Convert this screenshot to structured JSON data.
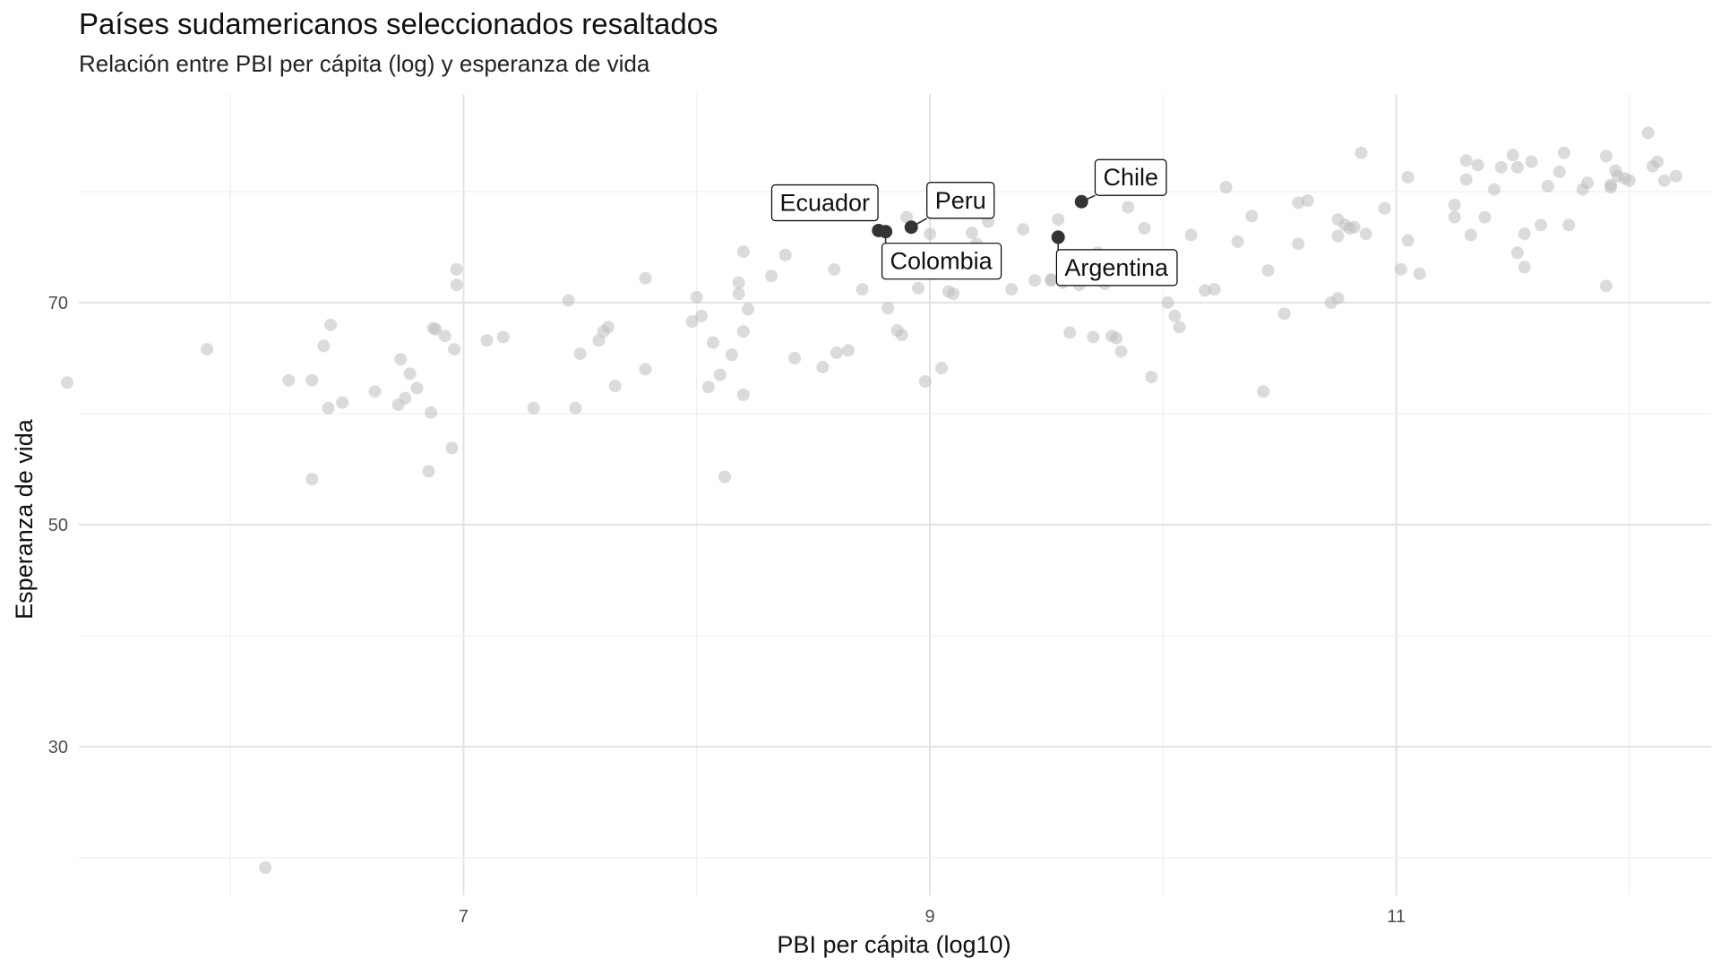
{
  "chart_data": {
    "type": "scatter",
    "title": "Países sudamericanos seleccionados resaltados",
    "subtitle": "Relación entre PBI per cápita (log) y esperanza de vida",
    "xlabel": "PBI per cápita (log10)",
    "ylabel": "Esperanza de vida",
    "xlim": [
      5.35,
      12.35
    ],
    "ylim": [
      16.6,
      88.8
    ],
    "x_ticks": [
      7,
      9,
      11
    ],
    "y_ticks": [
      30,
      50,
      70
    ],
    "grid": true,
    "background_points": [
      [
        5.3,
        62.8
      ],
      [
        5.9,
        65.8
      ],
      [
        6.15,
        19.1
      ],
      [
        6.25,
        63
      ],
      [
        6.35,
        63
      ],
      [
        6.35,
        54.1
      ],
      [
        6.4,
        66.1
      ],
      [
        6.42,
        60.5
      ],
      [
        6.43,
        68
      ],
      [
        6.48,
        61
      ],
      [
        6.62,
        62
      ],
      [
        6.72,
        60.8
      ],
      [
        6.73,
        64.9
      ],
      [
        6.75,
        61.4
      ],
      [
        6.77,
        63.6
      ],
      [
        6.8,
        62.3
      ],
      [
        6.87,
        67.7
      ],
      [
        6.88,
        67.6
      ],
      [
        6.86,
        60.1
      ],
      [
        6.85,
        54.8
      ],
      [
        6.92,
        67
      ],
      [
        6.95,
        56.9
      ],
      [
        6.96,
        65.8
      ],
      [
        6.97,
        73
      ],
      [
        6.97,
        71.6
      ],
      [
        7.1,
        66.6
      ],
      [
        7.17,
        66.9
      ],
      [
        7.3,
        60.5
      ],
      [
        7.45,
        70.2
      ],
      [
        7.48,
        60.5
      ],
      [
        7.5,
        65.4
      ],
      [
        7.58,
        66.6
      ],
      [
        7.6,
        67.4
      ],
      [
        7.62,
        67.8
      ],
      [
        7.65,
        62.5
      ],
      [
        7.78,
        64
      ],
      [
        7.78,
        72.2
      ],
      [
        7.98,
        68.3
      ],
      [
        8.0,
        70.5
      ],
      [
        8.02,
        68.8
      ],
      [
        8.05,
        62.4
      ],
      [
        8.07,
        66.4
      ],
      [
        8.1,
        63.5
      ],
      [
        8.12,
        54.3
      ],
      [
        8.15,
        65.3
      ],
      [
        8.18,
        70.8
      ],
      [
        8.18,
        71.8
      ],
      [
        8.2,
        74.6
      ],
      [
        8.2,
        67.4
      ],
      [
        8.22,
        69.4
      ],
      [
        8.2,
        61.7
      ],
      [
        8.32,
        72.4
      ],
      [
        8.38,
        74.3
      ],
      [
        8.42,
        65
      ],
      [
        8.54,
        64.2
      ],
      [
        8.59,
        73
      ],
      [
        8.6,
        65.5
      ],
      [
        8.65,
        65.7
      ],
      [
        8.71,
        71.2
      ],
      [
        8.82,
        69.5
      ],
      [
        8.86,
        67.5
      ],
      [
        8.88,
        67.1
      ],
      [
        8.9,
        77.7
      ],
      [
        8.95,
        71.3
      ],
      [
        8.92,
        72.9
      ],
      [
        8.98,
        62.9
      ],
      [
        9.0,
        76.2
      ],
      [
        9.02,
        74.1
      ],
      [
        9.05,
        64.1
      ],
      [
        9.08,
        71
      ],
      [
        9.1,
        70.8
      ],
      [
        9.18,
        76.3
      ],
      [
        9.2,
        75.3
      ],
      [
        9.25,
        77.3
      ],
      [
        9.35,
        71.2
      ],
      [
        9.4,
        76.6
      ],
      [
        9.45,
        72
      ],
      [
        9.52,
        72.1
      ],
      [
        9.52,
        72
      ],
      [
        9.55,
        77.5
      ],
      [
        9.57,
        71.8
      ],
      [
        9.6,
        67.3
      ],
      [
        9.64,
        71.6
      ],
      [
        9.7,
        66.9
      ],
      [
        9.72,
        74.5
      ],
      [
        9.75,
        71.7
      ],
      [
        9.78,
        73.4
      ],
      [
        9.8,
        72.3
      ],
      [
        9.78,
        67
      ],
      [
        9.8,
        66.8
      ],
      [
        9.82,
        65.6
      ],
      [
        9.85,
        78.6
      ],
      [
        9.88,
        72.3
      ],
      [
        9.92,
        76.7
      ],
      [
        9.95,
        63.3
      ],
      [
        10.02,
        70
      ],
      [
        10.05,
        68.8
      ],
      [
        10.07,
        67.8
      ],
      [
        10.12,
        76.1
      ],
      [
        10.18,
        71.1
      ],
      [
        10.22,
        71.2
      ],
      [
        10.27,
        80.4
      ],
      [
        10.32,
        75.5
      ],
      [
        10.38,
        77.8
      ],
      [
        10.43,
        62
      ],
      [
        10.45,
        72.9
      ],
      [
        10.52,
        69
      ],
      [
        10.58,
        79
      ],
      [
        10.58,
        75.3
      ],
      [
        10.62,
        79.2
      ],
      [
        10.72,
        70
      ],
      [
        10.75,
        77.5
      ],
      [
        10.75,
        76
      ],
      [
        10.75,
        70.4
      ],
      [
        10.78,
        77
      ],
      [
        10.8,
        76.7
      ],
      [
        10.82,
        76.8
      ],
      [
        10.85,
        83.5
      ],
      [
        10.87,
        76.2
      ],
      [
        10.95,
        78.5
      ],
      [
        11.05,
        81.3
      ],
      [
        11.05,
        75.6
      ],
      [
        11.25,
        78.8
      ],
      [
        11.25,
        77.7
      ],
      [
        11.3,
        82.8
      ],
      [
        11.3,
        81.1
      ],
      [
        11.32,
        76.1
      ],
      [
        11.35,
        82.4
      ],
      [
        11.38,
        77.7
      ],
      [
        11.42,
        80.2
      ],
      [
        11.45,
        82.2
      ],
      [
        11.5,
        83.3
      ],
      [
        11.52,
        82.2
      ],
      [
        11.52,
        74.5
      ],
      [
        11.55,
        76.2
      ],
      [
        11.55,
        73.2
      ],
      [
        11.58,
        82.7
      ],
      [
        11.62,
        77
      ],
      [
        11.65,
        80.5
      ],
      [
        11.7,
        81.8
      ],
      [
        11.72,
        83.5
      ],
      [
        11.74,
        77
      ],
      [
        11.8,
        80.2
      ],
      [
        11.82,
        80.8
      ],
      [
        11.9,
        83.2
      ],
      [
        11.92,
        80.4
      ],
      [
        11.92,
        80.6
      ],
      [
        11.94,
        81.9
      ],
      [
        11.95,
        81.4
      ],
      [
        11.98,
        81.2
      ],
      [
        12.0,
        81
      ],
      [
        12.08,
        85.3
      ],
      [
        12.1,
        82.3
      ],
      [
        12.12,
        82.7
      ],
      [
        12.15,
        81
      ],
      [
        12.2,
        81.4
      ],
      [
        11.9,
        71.5
      ],
      [
        11.1,
        72.6
      ],
      [
        11.02,
        73
      ]
    ],
    "highlighted": [
      {
        "label": "Chile",
        "x": 9.65,
        "y": 79.1
      },
      {
        "label": "Peru",
        "x": 8.92,
        "y": 76.8
      },
      {
        "label": "Ecuador",
        "x": 8.78,
        "y": 76.5
      },
      {
        "label": "Colombia",
        "x": 8.81,
        "y": 76.4
      },
      {
        "label": "Argentina",
        "x": 9.55,
        "y": 75.9
      }
    ],
    "colors": {
      "background_points": "#bdbdbd",
      "highlighted": "#333333",
      "grid_major": "#e3e3e3",
      "grid_minor": "#f0f0f0",
      "label_border": "#000000"
    }
  }
}
